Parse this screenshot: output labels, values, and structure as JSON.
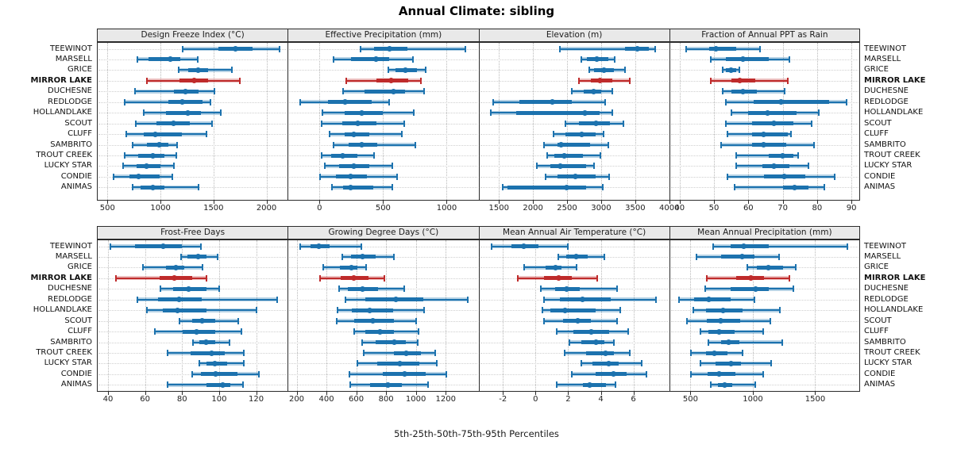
{
  "figure": {
    "title": "Annual Climate: sibling",
    "caption": "5th-25th-50th-75th-95th Percentiles"
  },
  "colors": {
    "series_blue": "#1c72ae",
    "series_blue_pale": "rgba(28,114,174,0.32)",
    "highlight_red": "#bf2b2b",
    "highlight_red_pale": "rgba(191,43,43,0.30)",
    "strip_bg": "#e9e9e9",
    "grid": "#b9b9b9"
  },
  "chart_data": {
    "type": "scatter",
    "subtype": "percentile-dot-whisker-trellis",
    "percentiles_shown": [
      5,
      25,
      50,
      75,
      95
    ],
    "legend_position": "none",
    "grid": "dotted",
    "sites": [
      "TEEWINOT",
      "MARSELL",
      "GRICE",
      "MIRROR LAKE",
      "DUCHESNE",
      "REDLODGE",
      "HOLLANDLAKE",
      "SCOUT",
      "CLUFF",
      "SAMBRITO",
      "TROUT CREEK",
      "LUCKY STAR",
      "CONDIE",
      "ANIMAS"
    ],
    "highlight_site": "MIRROR LAKE",
    "panels": [
      {
        "title": "Design Freeze Index (°C)",
        "row": 0,
        "col": 0,
        "xlim": [
          400,
          2200
        ],
        "ticks": [
          500,
          1000,
          1500,
          2000
        ],
        "values": [
          [
            1210,
            1550,
            1710,
            1870,
            2120
          ],
          [
            785,
            890,
            1090,
            1190,
            1350
          ],
          [
            1170,
            1260,
            1355,
            1450,
            1670
          ],
          [
            870,
            1180,
            1320,
            1450,
            1745
          ],
          [
            760,
            1125,
            1235,
            1360,
            1510
          ],
          [
            665,
            1075,
            1205,
            1400,
            1475
          ],
          [
            845,
            1050,
            1255,
            1385,
            1570
          ],
          [
            770,
            965,
            1120,
            1275,
            1490
          ],
          [
            680,
            845,
            950,
            1205,
            1435
          ],
          [
            735,
            875,
            985,
            1075,
            1160
          ],
          [
            665,
            790,
            925,
            1040,
            1150
          ],
          [
            645,
            775,
            870,
            1000,
            1125
          ],
          [
            555,
            705,
            795,
            990,
            1110
          ],
          [
            735,
            815,
            925,
            1040,
            1360
          ]
        ]
      },
      {
        "title": "Effective Precipitation (mm)",
        "row": 0,
        "col": 1,
        "xlim": [
          -250,
          1250
        ],
        "ticks": [
          0,
          500,
          1000
        ],
        "values": [
          [
            320,
            430,
            550,
            690,
            1150
          ],
          [
            110,
            245,
            445,
            550,
            735
          ],
          [
            540,
            600,
            675,
            765,
            835
          ],
          [
            210,
            450,
            565,
            700,
            800
          ],
          [
            185,
            355,
            585,
            670,
            825
          ],
          [
            -150,
            65,
            200,
            410,
            545
          ],
          [
            25,
            195,
            335,
            495,
            740
          ],
          [
            15,
            180,
            300,
            450,
            665
          ],
          [
            80,
            200,
            270,
            390,
            650
          ],
          [
            110,
            230,
            330,
            455,
            755
          ],
          [
            15,
            90,
            185,
            300,
            430
          ],
          [
            45,
            155,
            270,
            390,
            575
          ],
          [
            5,
            130,
            245,
            370,
            610
          ],
          [
            95,
            185,
            245,
            420,
            570
          ]
        ]
      },
      {
        "title": "Elevation (m)",
        "row": 0,
        "col": 2,
        "xlim": [
          1200,
          4000
        ],
        "ticks": [
          1500,
          2000,
          2500,
          3000,
          3500,
          4000
        ],
        "values": [
          [
            2395,
            3355,
            3535,
            3700,
            3795
          ],
          [
            2710,
            2790,
            2935,
            3105,
            3195
          ],
          [
            2830,
            2900,
            3040,
            3185,
            3355
          ],
          [
            2670,
            2845,
            2985,
            3165,
            3415
          ],
          [
            2565,
            2745,
            2890,
            3000,
            3165
          ],
          [
            1420,
            1795,
            2280,
            2575,
            3060
          ],
          [
            1385,
            1755,
            2760,
            2975,
            3165
          ],
          [
            2480,
            2670,
            2920,
            3130,
            3325
          ],
          [
            2300,
            2480,
            2710,
            2920,
            3030
          ],
          [
            2165,
            2365,
            2415,
            2840,
            3110
          ],
          [
            2205,
            2310,
            2460,
            2730,
            2985
          ],
          [
            2055,
            2250,
            2395,
            2785,
            2900
          ],
          [
            2180,
            2365,
            2625,
            2920,
            3120
          ],
          [
            1555,
            1620,
            2490,
            2785,
            3025
          ]
        ]
      },
      {
        "title": "Fraction of Annual PPT as Rain",
        "row": 0,
        "col": 3,
        "xlim": [
          37,
          92.5
        ],
        "ticks": [
          40,
          50,
          60,
          70,
          80,
          90
        ],
        "values": [
          [
            42,
            48.5,
            50.5,
            56.5,
            63.5
          ],
          [
            49,
            53.5,
            58.5,
            66,
            72
          ],
          [
            52.5,
            53.5,
            55,
            56.5,
            57.5
          ],
          [
            49,
            55,
            57.5,
            62,
            71.5
          ],
          [
            52.5,
            55,
            58.5,
            62.5,
            70.5
          ],
          [
            53.5,
            61.5,
            69.5,
            83.5,
            88.5
          ],
          [
            55,
            60,
            65.5,
            74,
            80.5
          ],
          [
            53.5,
            61,
            67.5,
            73,
            78.5
          ],
          [
            54,
            61,
            64.5,
            71.5,
            72.5
          ],
          [
            52,
            61,
            64.5,
            71,
            79
          ],
          [
            56.5,
            66,
            70,
            73,
            74.5
          ],
          [
            56.5,
            64,
            67.5,
            72,
            77.5
          ],
          [
            54,
            64.5,
            70.5,
            76.5,
            85
          ],
          [
            56,
            70,
            73.5,
            77.5,
            82
          ]
        ]
      },
      {
        "title": "Frost-Free Days",
        "row": 1,
        "col": 0,
        "xlim": [
          34,
          137
        ],
        "ticks": [
          40,
          60,
          80,
          100,
          120
        ],
        "values": [
          [
            41.5,
            54.5,
            70,
            80,
            90
          ],
          [
            79.5,
            83,
            88.5,
            93,
            99
          ],
          [
            59,
            71.5,
            76.5,
            81,
            91
          ],
          [
            44.5,
            68,
            76,
            85.5,
            93
          ],
          [
            68.5,
            75,
            83.5,
            93,
            100
          ],
          [
            56,
            67,
            78.5,
            90.5,
            131.5
          ],
          [
            61,
            69.5,
            77.5,
            93,
            120
          ],
          [
            78.5,
            85.5,
            91,
            98,
            110.5
          ],
          [
            65.5,
            80.5,
            88,
            98,
            112
          ],
          [
            86,
            89.5,
            93,
            98,
            105.5
          ],
          [
            72,
            84.5,
            96,
            103,
            113.5
          ],
          [
            89.5,
            93,
            97.5,
            104.5,
            113.5
          ],
          [
            85.5,
            90,
            98,
            110,
            121.5
          ],
          [
            72,
            93,
            102,
            106,
            113
          ]
        ]
      },
      {
        "title": "Growing Degree Days (°C)",
        "row": 1,
        "col": 1,
        "xlim": [
          140,
          1420
        ],
        "ticks": [
          200,
          400,
          600,
          800,
          1000,
          1200
        ],
        "values": [
          [
            225,
            295,
            350,
            420,
            635
          ],
          [
            505,
            565,
            640,
            730,
            855
          ],
          [
            380,
            490,
            565,
            605,
            665
          ],
          [
            355,
            495,
            585,
            680,
            790
          ],
          [
            485,
            545,
            640,
            745,
            920
          ],
          [
            525,
            660,
            865,
            1050,
            1350
          ],
          [
            475,
            570,
            690,
            845,
            1055
          ],
          [
            470,
            585,
            710,
            855,
            1000
          ],
          [
            585,
            660,
            760,
            855,
            1020
          ],
          [
            640,
            730,
            855,
            935,
            1010
          ],
          [
            650,
            855,
            935,
            1035,
            1130
          ],
          [
            605,
            740,
            890,
            1025,
            1140
          ],
          [
            555,
            780,
            925,
            1065,
            1205
          ],
          [
            560,
            695,
            810,
            905,
            1080
          ]
        ]
      },
      {
        "title": "Mean Annual Air Temperature (°C)",
        "row": 1,
        "col": 2,
        "xlim": [
          -3.5,
          8.2
        ],
        "ticks": [
          -2,
          0,
          2,
          4,
          6
        ],
        "values": [
          [
            -2.7,
            -1.5,
            -0.7,
            0.2,
            2.0
          ],
          [
            1.4,
            1.9,
            2.5,
            3.2,
            4.2
          ],
          [
            -0.7,
            0.6,
            1.2,
            1.6,
            2.5
          ],
          [
            -1.1,
            0.5,
            1.4,
            2.2,
            3.8
          ],
          [
            0.3,
            1.2,
            1.9,
            2.7,
            5.0
          ],
          [
            0.5,
            1.5,
            2.9,
            4.6,
            7.4
          ],
          [
            0.4,
            0.9,
            1.8,
            3.7,
            5.2
          ],
          [
            0.5,
            1.7,
            2.6,
            3.4,
            5.0
          ],
          [
            1.3,
            2.3,
            3.4,
            4.5,
            5.7
          ],
          [
            2.1,
            2.8,
            3.7,
            4.2,
            4.8
          ],
          [
            1.8,
            3.1,
            4.3,
            4.8,
            5.8
          ],
          [
            2.8,
            3.5,
            4.5,
            5.1,
            6.5
          ],
          [
            2.2,
            3.7,
            4.8,
            5.6,
            6.8
          ],
          [
            1.3,
            2.9,
            3.3,
            4.3,
            4.9
          ]
        ]
      },
      {
        "title": "Mean Annual Precipitation (mm)",
        "row": 1,
        "col": 3,
        "xlim": [
          330,
          1860
        ],
        "ticks": [
          500,
          1000,
          1500
        ],
        "values": [
          [
            685,
            820,
            930,
            1130,
            1755
          ],
          [
            550,
            745,
            915,
            1015,
            1210
          ],
          [
            955,
            1030,
            1125,
            1245,
            1345
          ],
          [
            630,
            865,
            985,
            1090,
            1295
          ],
          [
            620,
            820,
            1020,
            1130,
            1325
          ],
          [
            405,
            530,
            645,
            820,
            1015
          ],
          [
            525,
            625,
            760,
            915,
            1215
          ],
          [
            470,
            630,
            740,
            900,
            1140
          ],
          [
            580,
            645,
            730,
            855,
            1085
          ],
          [
            645,
            745,
            805,
            895,
            1235
          ],
          [
            505,
            625,
            690,
            795,
            915
          ],
          [
            580,
            700,
            825,
            905,
            1145
          ],
          [
            505,
            635,
            730,
            860,
            1085
          ],
          [
            665,
            720,
            775,
            835,
            1020
          ]
        ]
      }
    ]
  }
}
